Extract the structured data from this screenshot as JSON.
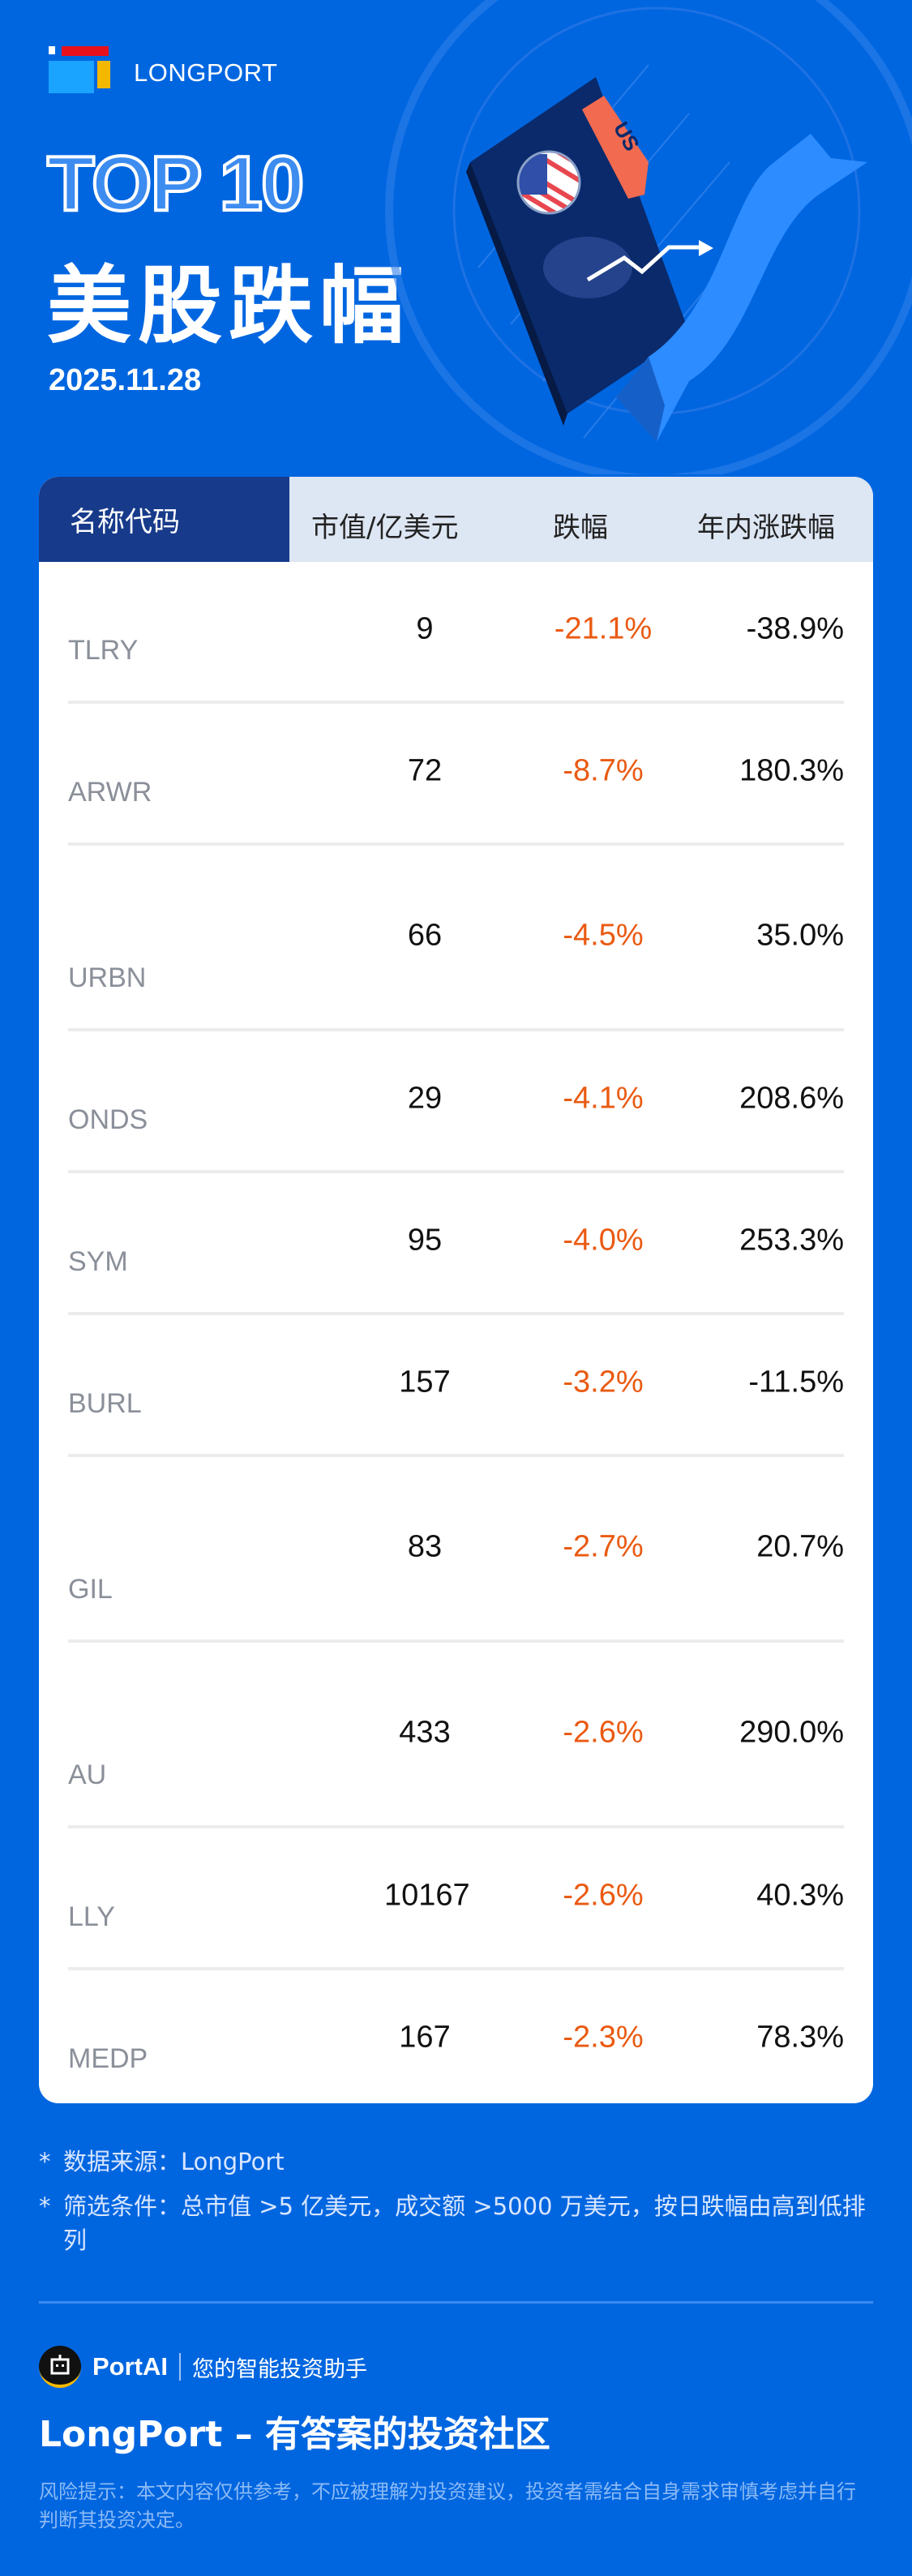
{
  "brand": {
    "name": "LONGPORT",
    "colors": {
      "background": "#0066e0",
      "header_dark": "#173a8a",
      "header_light": "#dde6f3",
      "decline": "#ea5a12"
    }
  },
  "hero": {
    "top_label": "TOP 10",
    "title": "美股跌幅",
    "date": "2025.11.28",
    "illustration": {
      "tag": "US",
      "icons": [
        "us-flag-icon",
        "price-tag-icon",
        "bear-icon",
        "down-arrow-icon"
      ]
    }
  },
  "table": {
    "headers": [
      "名称代码",
      "市值/亿美元",
      "跌幅",
      "年内涨跌幅"
    ],
    "rows": [
      {
        "ticker": "TLRY",
        "market_cap": "9",
        "change": "-21.1%",
        "ytd": "-38.9%"
      },
      {
        "ticker": "ARWR",
        "market_cap": "72",
        "change": "-8.7%",
        "ytd": "180.3%"
      },
      {
        "ticker": "URBN",
        "market_cap": "66",
        "change": "-4.5%",
        "ytd": "35.0%"
      },
      {
        "ticker": "ONDS",
        "market_cap": "29",
        "change": "-4.1%",
        "ytd": "208.6%"
      },
      {
        "ticker": "SYM",
        "market_cap": "95",
        "change": "-4.0%",
        "ytd": "253.3%"
      },
      {
        "ticker": "BURL",
        "market_cap": "157",
        "change": "-3.2%",
        "ytd": "-11.5%"
      },
      {
        "ticker": "GIL",
        "market_cap": "83",
        "change": "-2.7%",
        "ytd": "20.7%"
      },
      {
        "ticker": "AU",
        "market_cap": "433",
        "change": "-2.6%",
        "ytd": "290.0%"
      },
      {
        "ticker": "LLY",
        "market_cap": "10167",
        "change": "-2.6%",
        "ytd": "40.3%"
      },
      {
        "ticker": "MEDP",
        "market_cap": "167",
        "change": "-2.3%",
        "ytd": "78.3%"
      }
    ]
  },
  "notes": {
    "star": "*",
    "source": "数据来源：LongPort",
    "filter": "筛选条件：总市值 >5 亿美元，成交额 >5000 万美元，按日跌幅由高到低排列"
  },
  "footer": {
    "portai_name": "PortAI",
    "portai_slogan": "您的智能投资助手",
    "tagline": "LongPort – 有答案的投资社区",
    "disclaimer": "风险提示：本文内容仅供参考，不应被理解为投资建议，投资者需结合自身需求审慎考虑并自行判断其投资决定。"
  }
}
